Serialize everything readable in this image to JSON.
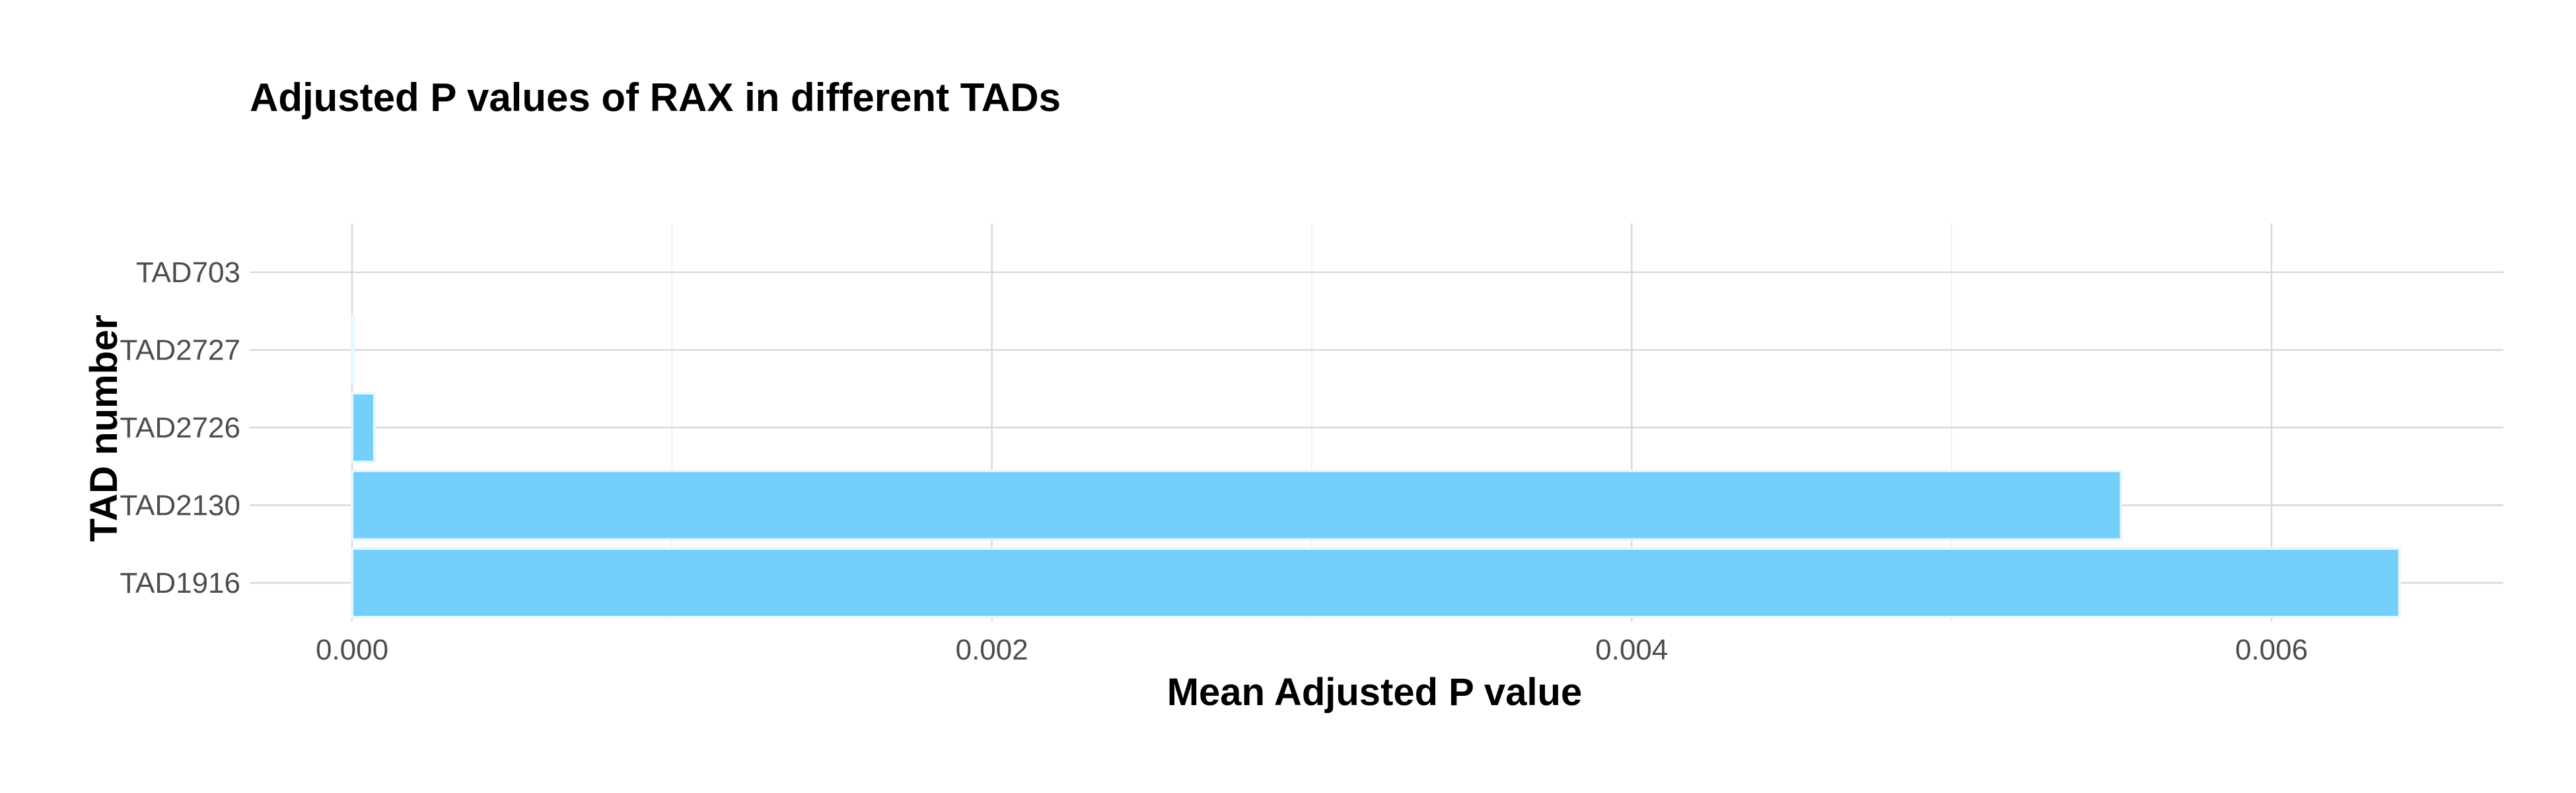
{
  "chart_data": {
    "type": "bar",
    "orientation": "horizontal",
    "title": "Adjusted P values of RAX in different TADs",
    "xlabel": "Mean Adjusted P value",
    "ylabel": "TAD number",
    "categories": [
      "TAD703",
      "TAD2727",
      "TAD2726",
      "TAD2130",
      "TAD1916"
    ],
    "values": [
      0.0,
      5e-06,
      7e-05,
      0.00553,
      0.0064
    ],
    "xlim": [
      0,
      0.0067
    ],
    "xticks": [
      0.0,
      0.002,
      0.004,
      0.006
    ],
    "xtick_labels": [
      "0.000",
      "0.002",
      "0.004",
      "0.006"
    ],
    "grid": true,
    "legend": "none",
    "colors": {
      "bar_fill": "#74cffb",
      "bar_edge": "#e8f6fe",
      "grid_major": "#d9d9d9",
      "grid_minor": "#ebebeb",
      "tick_text": "#4d4d4d"
    }
  }
}
